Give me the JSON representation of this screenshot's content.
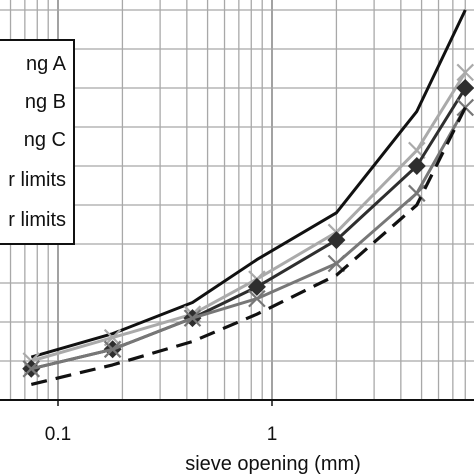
{
  "chart_data": {
    "type": "line",
    "xlabel": "sieve opening (mm)",
    "ylabel": "",
    "x_scale": "log",
    "xlim": [
      0.05,
      8
    ],
    "ylim": [
      0,
      100
    ],
    "y_axis_range_note": "",
    "x_tick_labels": [
      "0.1",
      "1"
    ],
    "grid": true,
    "legend_placement": "top-left",
    "series": [
      {
        "name": "ng A",
        "color": "#111111",
        "style": "solid",
        "marker": "none",
        "x": [
          0.075,
          0.18,
          0.425,
          0.85,
          2.0,
          4.75,
          8.0
        ],
        "y": [
          11,
          17,
          25,
          36,
          48,
          74,
          100
        ]
      },
      {
        "name": "ng B",
        "color": "#aaaaaa",
        "style": "solid",
        "marker": "x",
        "x": [
          0.075,
          0.18,
          0.425,
          0.85,
          2.0,
          4.75,
          8.0
        ],
        "y": [
          10,
          16,
          22,
          31,
          43,
          64,
          84
        ]
      },
      {
        "name": "ng C",
        "color": "#2e2e2e",
        "style": "solid",
        "marker": "diamond",
        "x": [
          0.075,
          0.18,
          0.425,
          0.85,
          2.0,
          4.75,
          8.0
        ],
        "y": [
          8,
          13,
          21,
          29,
          41,
          60,
          80
        ]
      },
      {
        "name": "r limits",
        "color": "#777777",
        "style": "solid",
        "marker": "x",
        "x": [
          0.075,
          0.18,
          0.425,
          0.85,
          2.0,
          4.75,
          8.0
        ],
        "y": [
          8,
          13,
          21,
          26,
          35,
          53,
          75
        ]
      },
      {
        "name": "r limits",
        "color": "#111111",
        "style": "dashed",
        "marker": "none",
        "x": [
          0.075,
          0.18,
          0.425,
          0.85,
          2.0,
          4.75,
          8.0
        ],
        "y": [
          4,
          9,
          15,
          22,
          32,
          50,
          75
        ]
      }
    ]
  }
}
